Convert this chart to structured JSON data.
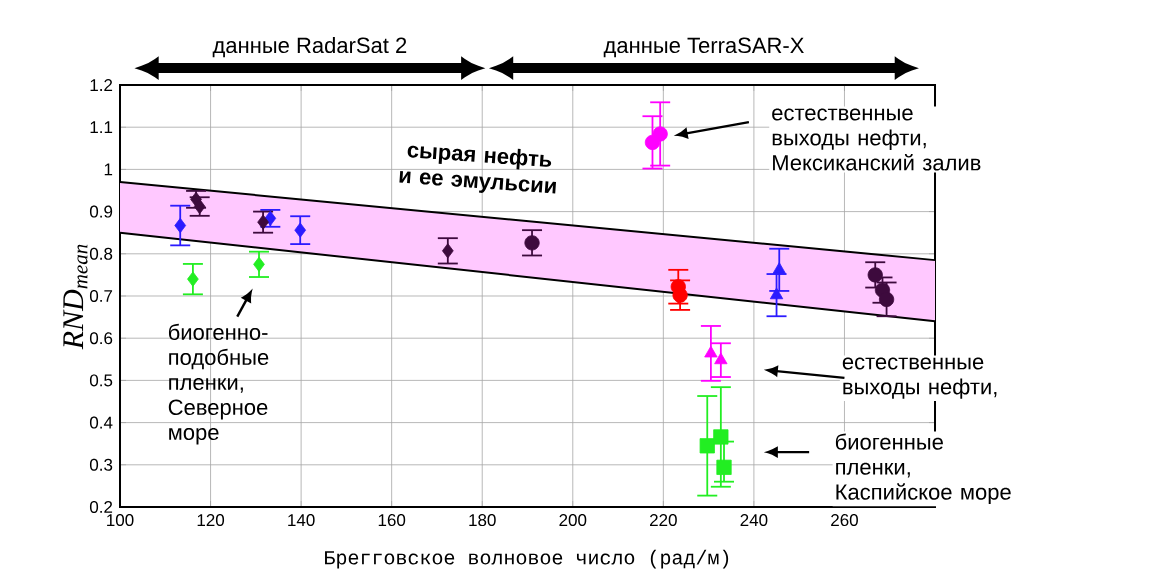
{
  "chart_data": {
    "type": "scatter",
    "xlabel": "Брегговское волновое число (рад/м)",
    "ylabel": "RND$_{mean}$",
    "xlim": [
      100,
      280
    ],
    "ylim": [
      0.2,
      1.2
    ],
    "xticks": [
      100,
      120,
      140,
      160,
      180,
      200,
      220,
      240,
      260
    ],
    "yticks": [
      0.2,
      0.3,
      0.4,
      0.5,
      0.6,
      0.7,
      0.8,
      0.9,
      1,
      1.1,
      1.2
    ],
    "grid": true,
    "series": [
      {
        "type": "line",
        "color": "#000000",
        "x": [
          100,
          280
        ],
        "values": [
          0.97,
          0.785
        ],
        "lower": [
          0.85,
          0.64
        ],
        "upper": [
          0.97,
          0.785
        ]
      },
      {
        "type": "line",
        "color": "#000000",
        "x": [
          100,
          280
        ],
        "values": [
          0.85,
          0.64
        ]
      },
      {
        "color": "#2b1bff",
        "marker": "diamond",
        "x": [
          113.3,
          133.2,
          139.8
        ],
        "values": [
          0.867,
          0.884,
          0.856
        ],
        "errors": [
          0.047,
          0.02,
          0.033
        ]
      },
      {
        "color": "#3d0a3d",
        "marker": "diamond",
        "x": [
          116.8,
          117.6,
          131.6,
          172.4
        ],
        "values": [
          0.929,
          0.912,
          0.875,
          0.807
        ],
        "errors": [
          0.02,
          0.022,
          0.025,
          0.03
        ]
      },
      {
        "color": "#3d0a3d",
        "marker": "circle",
        "x": [
          191,
          266.8,
          268.4,
          269.3
        ],
        "values": [
          0.826,
          0.75,
          0.714,
          0.692
        ],
        "errors": [
          0.03,
          0.03,
          0.03,
          0.04
        ]
      },
      {
        "color": "#22ee22",
        "marker": "diamond",
        "x": [
          116.1,
          130.7
        ],
        "values": [
          0.74,
          0.775
        ],
        "errors": [
          0.036,
          0.03
        ]
      },
      {
        "color": "#ff00ff",
        "marker": "circle",
        "x": [
          217.6,
          219.3
        ],
        "values": [
          1.064,
          1.084
        ],
        "errors": [
          0.062,
          0.075
        ]
      },
      {
        "color": "#ff0000",
        "marker": "circle",
        "x": [
          223.3,
          223.7
        ],
        "values": [
          0.722,
          0.702
        ],
        "errors": [
          0.04,
          0.035
        ]
      },
      {
        "color": "#ff00ff",
        "marker": "triangle",
        "x": [
          230.5,
          232.7
        ],
        "values": [
          0.564,
          0.548
        ],
        "errors": [
          0.065,
          0.04
        ]
      },
      {
        "color": "#2b1bff",
        "marker": "triangle",
        "x": [
          245.6,
          245
        ],
        "values": [
          0.762,
          0.702
        ],
        "errors": [
          0.05,
          0.05
        ]
      },
      {
        "color": "#22ee22",
        "marker": "square",
        "x": [
          229.7,
          232.7,
          233.4
        ],
        "values": [
          0.345,
          0.366,
          0.294
        ],
        "errors": [
          0.118,
          0.118,
          [
            0.26,
            0.355
          ]
        ]
      }
    ],
    "annotations": [
      "данные RadarSat 2",
      "данные TerraSAR-X",
      "сырая нефть и ее эмульсии",
      "естественные выходы нефти, Мексиканский залив",
      "биогенно-подобные пленки, Северное море",
      "естественные выходы нефти,",
      "биогенные пленки, Каспийское море"
    ]
  }
}
